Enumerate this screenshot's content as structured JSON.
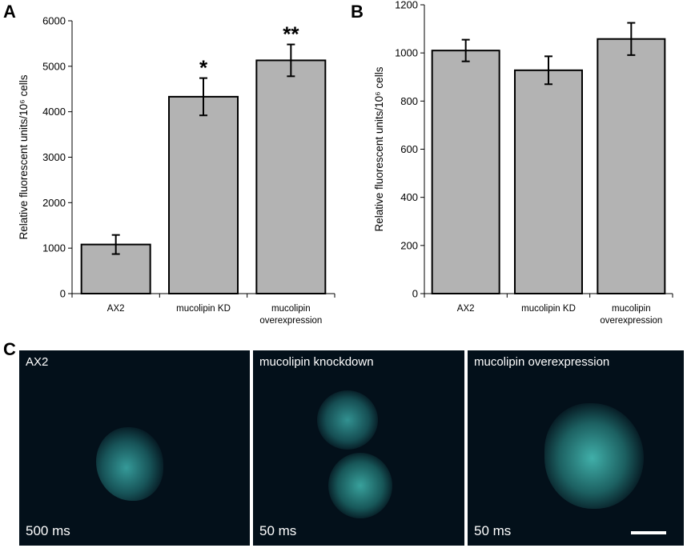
{
  "panels": {
    "a": {
      "letter": "A"
    },
    "b": {
      "letter": "B"
    },
    "c": {
      "letter": "C"
    }
  },
  "chart_data": [
    {
      "type": "bar",
      "panel": "A",
      "categories": [
        "AX2",
        "mucolipin KD",
        "mucolipin overexpression"
      ],
      "category_lines": [
        [
          "AX2"
        ],
        [
          "mucolipin KD"
        ],
        [
          "mucolipin",
          "overexpression"
        ]
      ],
      "values": [
        1080,
        4330,
        5130
      ],
      "errors": [
        210,
        410,
        350
      ],
      "significance": [
        "",
        "*",
        "**"
      ],
      "ylabel": "Relative fluorescent units/10⁶ cells",
      "ylim": [
        0,
        6000
      ],
      "yticks": [
        0,
        1000,
        2000,
        3000,
        4000,
        5000,
        6000
      ],
      "bar_color": "#b3b3b3"
    },
    {
      "type": "bar",
      "panel": "B",
      "categories": [
        "AX2",
        "mucolipin KD",
        "mucolipin overexpression"
      ],
      "category_lines": [
        [
          "AX2"
        ],
        [
          "mucolipin KD"
        ],
        [
          "mucolipin",
          "overexpression"
        ]
      ],
      "values": [
        1010,
        928,
        1058
      ],
      "errors": [
        45,
        58,
        67
      ],
      "significance": [
        "",
        "",
        ""
      ],
      "ylabel": "Relative fluorescent units/10⁶ cells",
      "ylim": [
        0,
        1200
      ],
      "yticks": [
        0,
        200,
        400,
        600,
        800,
        1000,
        1200
      ],
      "bar_color": "#b3b3b3"
    }
  ],
  "microscopy": {
    "images": [
      {
        "label": "AX2",
        "exposure": "500 ms"
      },
      {
        "label": "mucolipin knockdown",
        "exposure": "50 ms"
      },
      {
        "label": "mucolipin overexpression",
        "exposure": "50 ms"
      }
    ],
    "fluorescence_color": "#33c9c4"
  }
}
